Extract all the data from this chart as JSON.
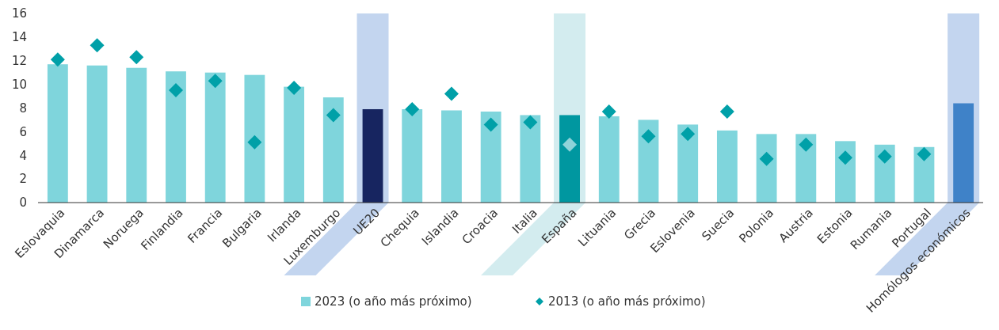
{
  "chart_data": {
    "type": "bar",
    "categories": [
      "Eslovaquia",
      "Dinamarca",
      "Noruega",
      "Finlandia",
      "Francia",
      "Bulgaria",
      "Irlanda",
      "Luxemburgo",
      "UE20",
      "Chequia",
      "Islandia",
      "Croacia",
      "Italia",
      "España",
      "Lituania",
      "Grecia",
      "Eslovenia",
      "Suecia",
      "Polonia",
      "Austria",
      "Estonia",
      "Rumania",
      "Portugal",
      "Homólogos económicos"
    ],
    "series": [
      {
        "name": "2023 (o año más próximo)",
        "color": "#7fd5dc",
        "colors": [
          "#7fd5dc",
          "#7fd5dc",
          "#7fd5dc",
          "#7fd5dc",
          "#7fd5dc",
          "#7fd5dc",
          "#7fd5dc",
          "#7fd5dc",
          "#172560",
          "#7fd5dc",
          "#7fd5dc",
          "#7fd5dc",
          "#7fd5dc",
          "#0097a0",
          "#7fd5dc",
          "#7fd5dc",
          "#7fd5dc",
          "#7fd5dc",
          "#7fd5dc",
          "#7fd5dc",
          "#7fd5dc",
          "#7fd5dc",
          "#7fd5dc",
          "#3f82c8"
        ],
        "values": [
          11.7,
          11.6,
          11.4,
          11.1,
          11.0,
          10.8,
          9.8,
          8.9,
          7.9,
          7.9,
          7.8,
          7.7,
          7.4,
          7.4,
          7.3,
          7.0,
          6.6,
          6.1,
          5.8,
          5.8,
          5.2,
          4.9,
          4.7,
          8.4
        ]
      },
      {
        "name": "2013 (o año más próximo)",
        "type": "scatter",
        "marker": "diamond",
        "color": "#00a0a8",
        "colors": [
          "#00a0a8",
          "#00a0a8",
          "#00a0a8",
          "#00a0a8",
          "#00a0a8",
          "#00a0a8",
          "#00a0a8",
          "#00a0a8",
          "#00a0a8",
          "#00a0a8",
          "#00a0a8",
          "#00a0a8",
          "#00a0a8",
          "#8fd3d9",
          "#00a0a8",
          "#00a0a8",
          "#00a0a8",
          "#00a0a8",
          "#00a0a8",
          "#00a0a8",
          "#00a0a8",
          "#00a0a8",
          "#00a0a8",
          "#00a0a8"
        ],
        "values": [
          12.1,
          13.3,
          12.3,
          9.5,
          10.3,
          5.1,
          9.7,
          7.4,
          null,
          7.9,
          9.2,
          6.6,
          6.8,
          4.9,
          7.7,
          5.6,
          5.8,
          7.7,
          3.7,
          4.9,
          3.8,
          3.9,
          4.1,
          null
        ]
      }
    ],
    "bands": [
      {
        "axis": "x",
        "from": "UE20",
        "to": "UE20",
        "color": "#c3d5ef"
      },
      {
        "axis": "x",
        "from": "España",
        "to": "España",
        "color": "#d3ecef"
      },
      {
        "axis": "x",
        "from": "Homólogos económicos",
        "to": "Homólogos económicos",
        "color": "#c3d5ef"
      }
    ],
    "ylim": [
      0,
      16
    ],
    "yticks": [
      0,
      2,
      4,
      6,
      8,
      10,
      12,
      14,
      16
    ],
    "grid": false,
    "legend": "bottom"
  }
}
